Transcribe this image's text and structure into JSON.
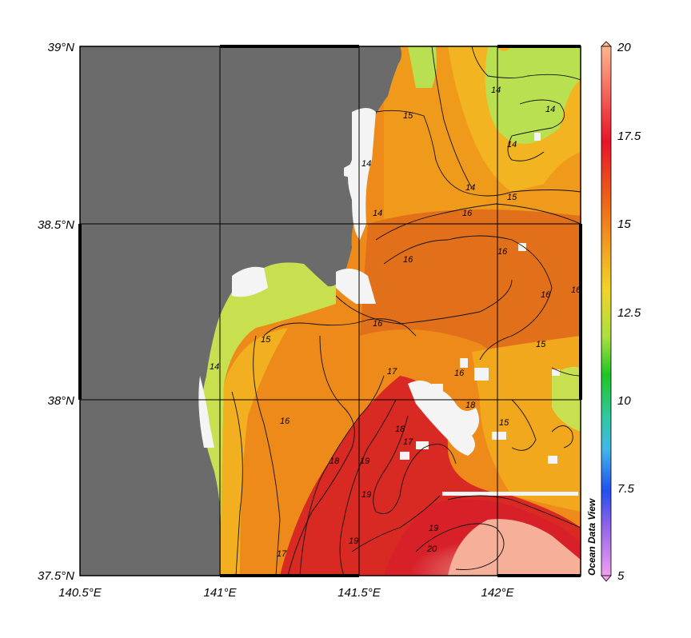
{
  "map": {
    "lat_labels": [
      "39°N",
      "38.5°N",
      "38°N",
      "37.5°N"
    ],
    "lon_labels": [
      "140.5°E",
      "141°E",
      "141.5°E",
      "142°E"
    ],
    "lon_range": [
      140.5,
      142.3
    ],
    "lat_range": [
      37.5,
      39.0
    ],
    "grid": true
  },
  "colorbar": {
    "min": 5,
    "max": 20,
    "tick_labels": [
      "20",
      "17.5",
      "15",
      "12.5",
      "10",
      "7.5",
      "5"
    ],
    "colors": [
      "#ffb08a",
      "#e8142a",
      "#f07a10",
      "#f2d020",
      "#16c41e",
      "#3aa8d8",
      "#2040f0",
      "#f090f0"
    ]
  },
  "contour_labels": [
    "15",
    "14",
    "14",
    "14",
    "14",
    "15",
    "16",
    "16",
    "16",
    "16",
    "16",
    "16",
    "16",
    "15",
    "14",
    "14",
    "14",
    "15",
    "15",
    "16",
    "17",
    "18",
    "19",
    "18",
    "19",
    "17",
    "18",
    "19",
    "19",
    "20",
    "17"
  ],
  "watermark": "Ocean Data View",
  "colors": {
    "land": "#6b6b6b",
    "nodata": "#f4f4f4",
    "water_warm": "#e8781a",
    "water_hot": "#d82a22",
    "water_cool": "#b8e050"
  }
}
